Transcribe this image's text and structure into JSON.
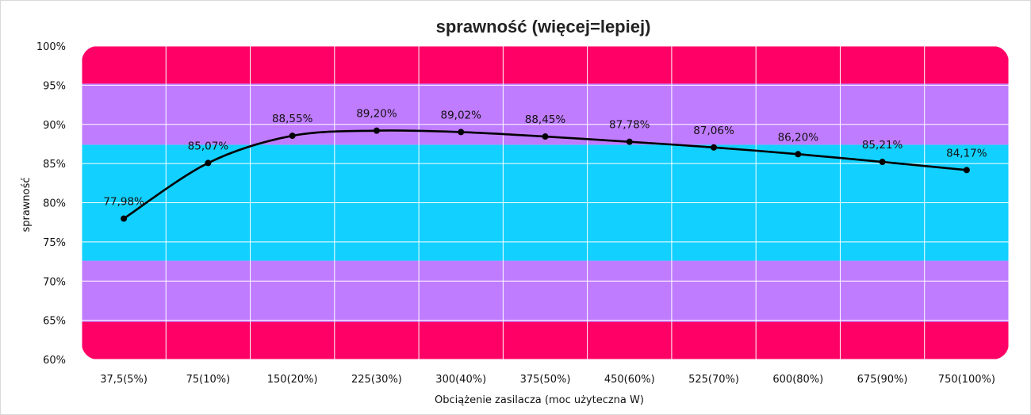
{
  "chart_data": {
    "type": "line",
    "title": "sprawność (więcej=lepiej)",
    "xlabel": "Obciążenie zasilacza (moc użyteczna W)",
    "ylabel": "sprawność",
    "categories": [
      "37,5(5%)",
      "75(10%)",
      "150(20%)",
      "225(30%)",
      "300(40%)",
      "375(50%)",
      "450(60%)",
      "525(70%)",
      "600(80%)",
      "675(90%)",
      "750(100%)"
    ],
    "series": [
      {
        "values": [
          77.98,
          85.07,
          88.55,
          89.2,
          89.02,
          88.45,
          87.78,
          87.06,
          86.2,
          85.21,
          84.17
        ],
        "labels": [
          "77,98%",
          "85,07%",
          "88,55%",
          "89,20%",
          "89,02%",
          "88,45%",
          "87,78%",
          "87,06%",
          "86,20%",
          "85,21%",
          "84,17%"
        ],
        "color": "#000000"
      }
    ],
    "ylim": [
      60,
      100
    ],
    "yticks": [
      "60%",
      "65%",
      "70%",
      "75%",
      "80%",
      "85%",
      "90%",
      "95%",
      "100%"
    ],
    "grid": true,
    "legend": "none",
    "background_bands": [
      {
        "from": 60,
        "to": 64.8,
        "color": "#ff0066"
      },
      {
        "from": 64.8,
        "to": 72.6,
        "color": "#c07cff"
      },
      {
        "from": 72.6,
        "to": 87.4,
        "color": "#12d0ff"
      },
      {
        "from": 87.4,
        "to": 95.2,
        "color": "#c07cff"
      },
      {
        "from": 95.2,
        "to": 100,
        "color": "#ff0066"
      }
    ]
  }
}
